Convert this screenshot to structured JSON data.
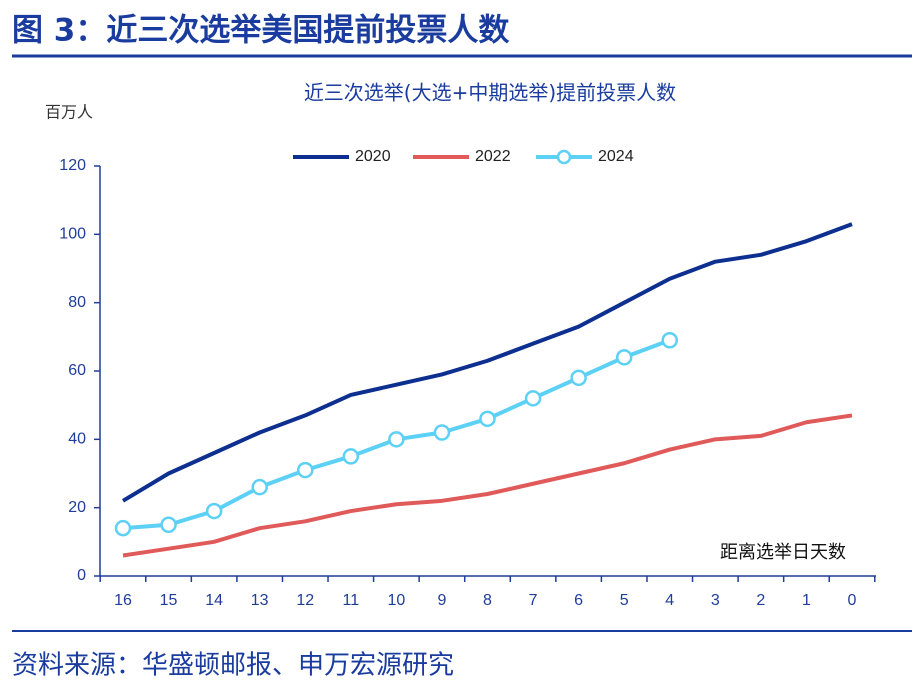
{
  "header": {
    "title": "图 3：近三次选举美国提前投票人数"
  },
  "chart_data": {
    "type": "line",
    "title": "近三次选举(大选+中期选举)提前投票人数",
    "y_axis_label": "百万人",
    "x_axis_label": "距离选举日天数",
    "categories": [
      "16",
      "15",
      "14",
      "13",
      "12",
      "11",
      "10",
      "9",
      "8",
      "7",
      "6",
      "5",
      "4",
      "3",
      "2",
      "1",
      "0"
    ],
    "series": [
      {
        "name": "2020",
        "color": "#0d2f8f",
        "values": [
          22,
          30,
          36,
          42,
          47,
          53,
          56,
          59,
          63,
          68,
          73,
          80,
          87,
          92,
          94,
          98,
          103
        ]
      },
      {
        "name": "2022",
        "color": "#e05a5a",
        "values": [
          6,
          8,
          10,
          14,
          16,
          19,
          21,
          22,
          24,
          27,
          30,
          33,
          37,
          40,
          41,
          45,
          47
        ]
      },
      {
        "name": "2024",
        "color": "#5cd0f5",
        "markers": true,
        "values": [
          14,
          15,
          19,
          26,
          31,
          35,
          40,
          42,
          46,
          52,
          58,
          64,
          69,
          null,
          null,
          null,
          null
        ]
      }
    ],
    "ylim": [
      0,
      120
    ],
    "yticks": [
      0,
      20,
      40,
      60,
      80,
      100,
      120
    ],
    "legend": "top",
    "grid": false
  },
  "footer": {
    "source": "资料来源：华盛顿邮报、申万宏源研究"
  }
}
